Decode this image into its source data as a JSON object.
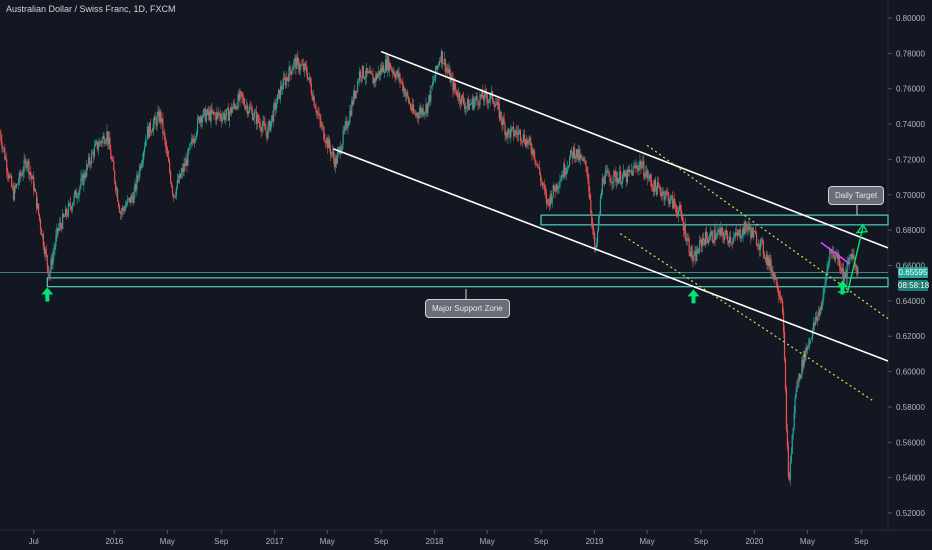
{
  "header": {
    "title": "Australian Dollar / Swiss Franc, 1D, FXCM"
  },
  "colors": {
    "background": "#131722",
    "up": "#26a69a",
    "down": "#ef5350",
    "zone": "#4fd1c5",
    "channel": "#ffffff",
    "dotted": "#d4e157",
    "arrow": "#00e676",
    "wedge": "#e040fb"
  },
  "annotations": {
    "daily_target": "Daily Target",
    "support_zone": "Major Support Zone",
    "last_price": "0.65595",
    "countdown": "08:58:18"
  },
  "chart_data": {
    "type": "candlestick",
    "title": "Australian Dollar / Swiss Franc, 1D, FXCM",
    "ylim": [
      0.51,
      0.81
    ],
    "y_ticks": [
      "0.80000",
      "0.78000",
      "0.76000",
      "0.74000",
      "0.72000",
      "0.70000",
      "0.68000",
      "0.66000",
      "0.64000",
      "0.62000",
      "0.60000",
      "0.58000",
      "0.56000",
      "0.54000",
      "0.52000"
    ],
    "x_ticks": [
      "Jul",
      "2016",
      "May",
      "Sep",
      "2017",
      "May",
      "Sep",
      "2018",
      "May",
      "Sep",
      "2019",
      "May",
      "Sep",
      "2020",
      "May",
      "Sep"
    ],
    "x_tick_dates": [
      "2015-07",
      "2016-01",
      "2016-05",
      "2016-09",
      "2017-01",
      "2017-05",
      "2017-09",
      "2018-01",
      "2018-05",
      "2018-09",
      "2019-01",
      "2019-05",
      "2019-09",
      "2020-01",
      "2020-05",
      "2020-09"
    ],
    "xlim": [
      "2015-04-15",
      "2020-11-01"
    ],
    "price_path": [
      [
        "2015-04-15",
        0.735
      ],
      [
        "2015-05-15",
        0.7
      ],
      [
        "2015-06-15",
        0.72
      ],
      [
        "2015-07-01",
        0.705
      ],
      [
        "2015-08-05",
        0.655
      ],
      [
        "2015-08-25",
        0.68
      ],
      [
        "2015-09-15",
        0.69
      ],
      [
        "2015-10-15",
        0.705
      ],
      [
        "2015-11-15",
        0.725
      ],
      [
        "2015-12-15",
        0.735
      ],
      [
        "2016-01-15",
        0.69
      ],
      [
        "2016-02-15",
        0.7
      ],
      [
        "2016-03-15",
        0.735
      ],
      [
        "2016-04-15",
        0.745
      ],
      [
        "2016-05-15",
        0.7
      ],
      [
        "2016-06-15",
        0.72
      ],
      [
        "2016-07-15",
        0.745
      ],
      [
        "2016-08-15",
        0.745
      ],
      [
        "2016-09-15",
        0.745
      ],
      [
        "2016-10-15",
        0.755
      ],
      [
        "2016-11-15",
        0.745
      ],
      [
        "2016-12-15",
        0.735
      ],
      [
        "2017-01-15",
        0.76
      ],
      [
        "2017-02-15",
        0.775
      ],
      [
        "2017-03-15",
        0.77
      ],
      [
        "2017-04-15",
        0.74
      ],
      [
        "2017-05-20",
        0.718
      ],
      [
        "2017-06-15",
        0.74
      ],
      [
        "2017-07-15",
        0.77
      ],
      [
        "2017-08-15",
        0.765
      ],
      [
        "2017-09-15",
        0.775
      ],
      [
        "2017-10-15",
        0.765
      ],
      [
        "2017-11-15",
        0.745
      ],
      [
        "2017-12-15",
        0.75
      ],
      [
        "2018-01-15",
        0.78
      ],
      [
        "2018-02-15",
        0.76
      ],
      [
        "2018-03-15",
        0.75
      ],
      [
        "2018-04-15",
        0.755
      ],
      [
        "2018-05-15",
        0.755
      ],
      [
        "2018-06-15",
        0.735
      ],
      [
        "2018-07-15",
        0.735
      ],
      [
        "2018-08-15",
        0.725
      ],
      [
        "2018-09-15",
        0.695
      ],
      [
        "2018-10-15",
        0.71
      ],
      [
        "2018-11-15",
        0.725
      ],
      [
        "2018-12-15",
        0.715
      ],
      [
        "2019-01-03",
        0.665
      ],
      [
        "2019-01-20",
        0.71
      ],
      [
        "2019-02-15",
        0.71
      ],
      [
        "2019-03-15",
        0.71
      ],
      [
        "2019-04-15",
        0.718
      ],
      [
        "2019-05-15",
        0.705
      ],
      [
        "2019-06-15",
        0.7
      ],
      [
        "2019-07-15",
        0.69
      ],
      [
        "2019-08-15",
        0.662
      ],
      [
        "2019-09-05",
        0.675
      ],
      [
        "2019-10-15",
        0.678
      ],
      [
        "2019-11-15",
        0.675
      ],
      [
        "2019-12-15",
        0.682
      ],
      [
        "2020-01-15",
        0.672
      ],
      [
        "2020-02-15",
        0.655
      ],
      [
        "2020-03-05",
        0.64
      ],
      [
        "2020-03-19",
        0.535
      ],
      [
        "2020-04-05",
        0.59
      ],
      [
        "2020-04-25",
        0.61
      ],
      [
        "2020-05-15",
        0.625
      ],
      [
        "2020-06-05",
        0.64
      ],
      [
        "2020-06-20",
        0.668
      ],
      [
        "2020-07-10",
        0.665
      ],
      [
        "2020-07-25",
        0.652
      ],
      [
        "2020-08-10",
        0.668
      ],
      [
        "2020-08-25",
        0.656
      ]
    ],
    "last_price": 0.65595,
    "support_zone": {
      "low": 0.648,
      "high": 0.653,
      "from": "2015-08-01",
      "to": "2020-11-01"
    },
    "target_zone": {
      "low": 0.683,
      "high": 0.6885,
      "from": "2018-09-01",
      "to": "2020-11-01"
    },
    "channel_upper": [
      [
        "2017-09-01",
        0.781
      ],
      [
        "2020-11-01",
        0.67
      ]
    ],
    "channel_lower": [
      [
        "2017-05-15",
        0.726
      ],
      [
        "2020-11-01",
        0.606
      ]
    ],
    "dotted_upper": [
      [
        "2019-05-01",
        0.728
      ],
      [
        "2020-11-01",
        0.63
      ]
    ],
    "dotted_lower": [
      [
        "2019-03-01",
        0.678
      ],
      [
        "2020-10-01",
        0.583
      ]
    ],
    "wedge_line": [
      [
        "2020-06-01",
        0.673
      ],
      [
        "2020-08-05",
        0.661
      ]
    ],
    "target_arrow": [
      [
        "2020-08-01",
        0.645
      ],
      [
        "2020-09-05",
        0.682
      ]
    ],
    "support_arrows": [
      [
        "2015-08-01",
        0.643
      ],
      [
        "2019-08-15",
        0.642
      ],
      [
        "2020-07-20",
        0.647
      ]
    ]
  }
}
